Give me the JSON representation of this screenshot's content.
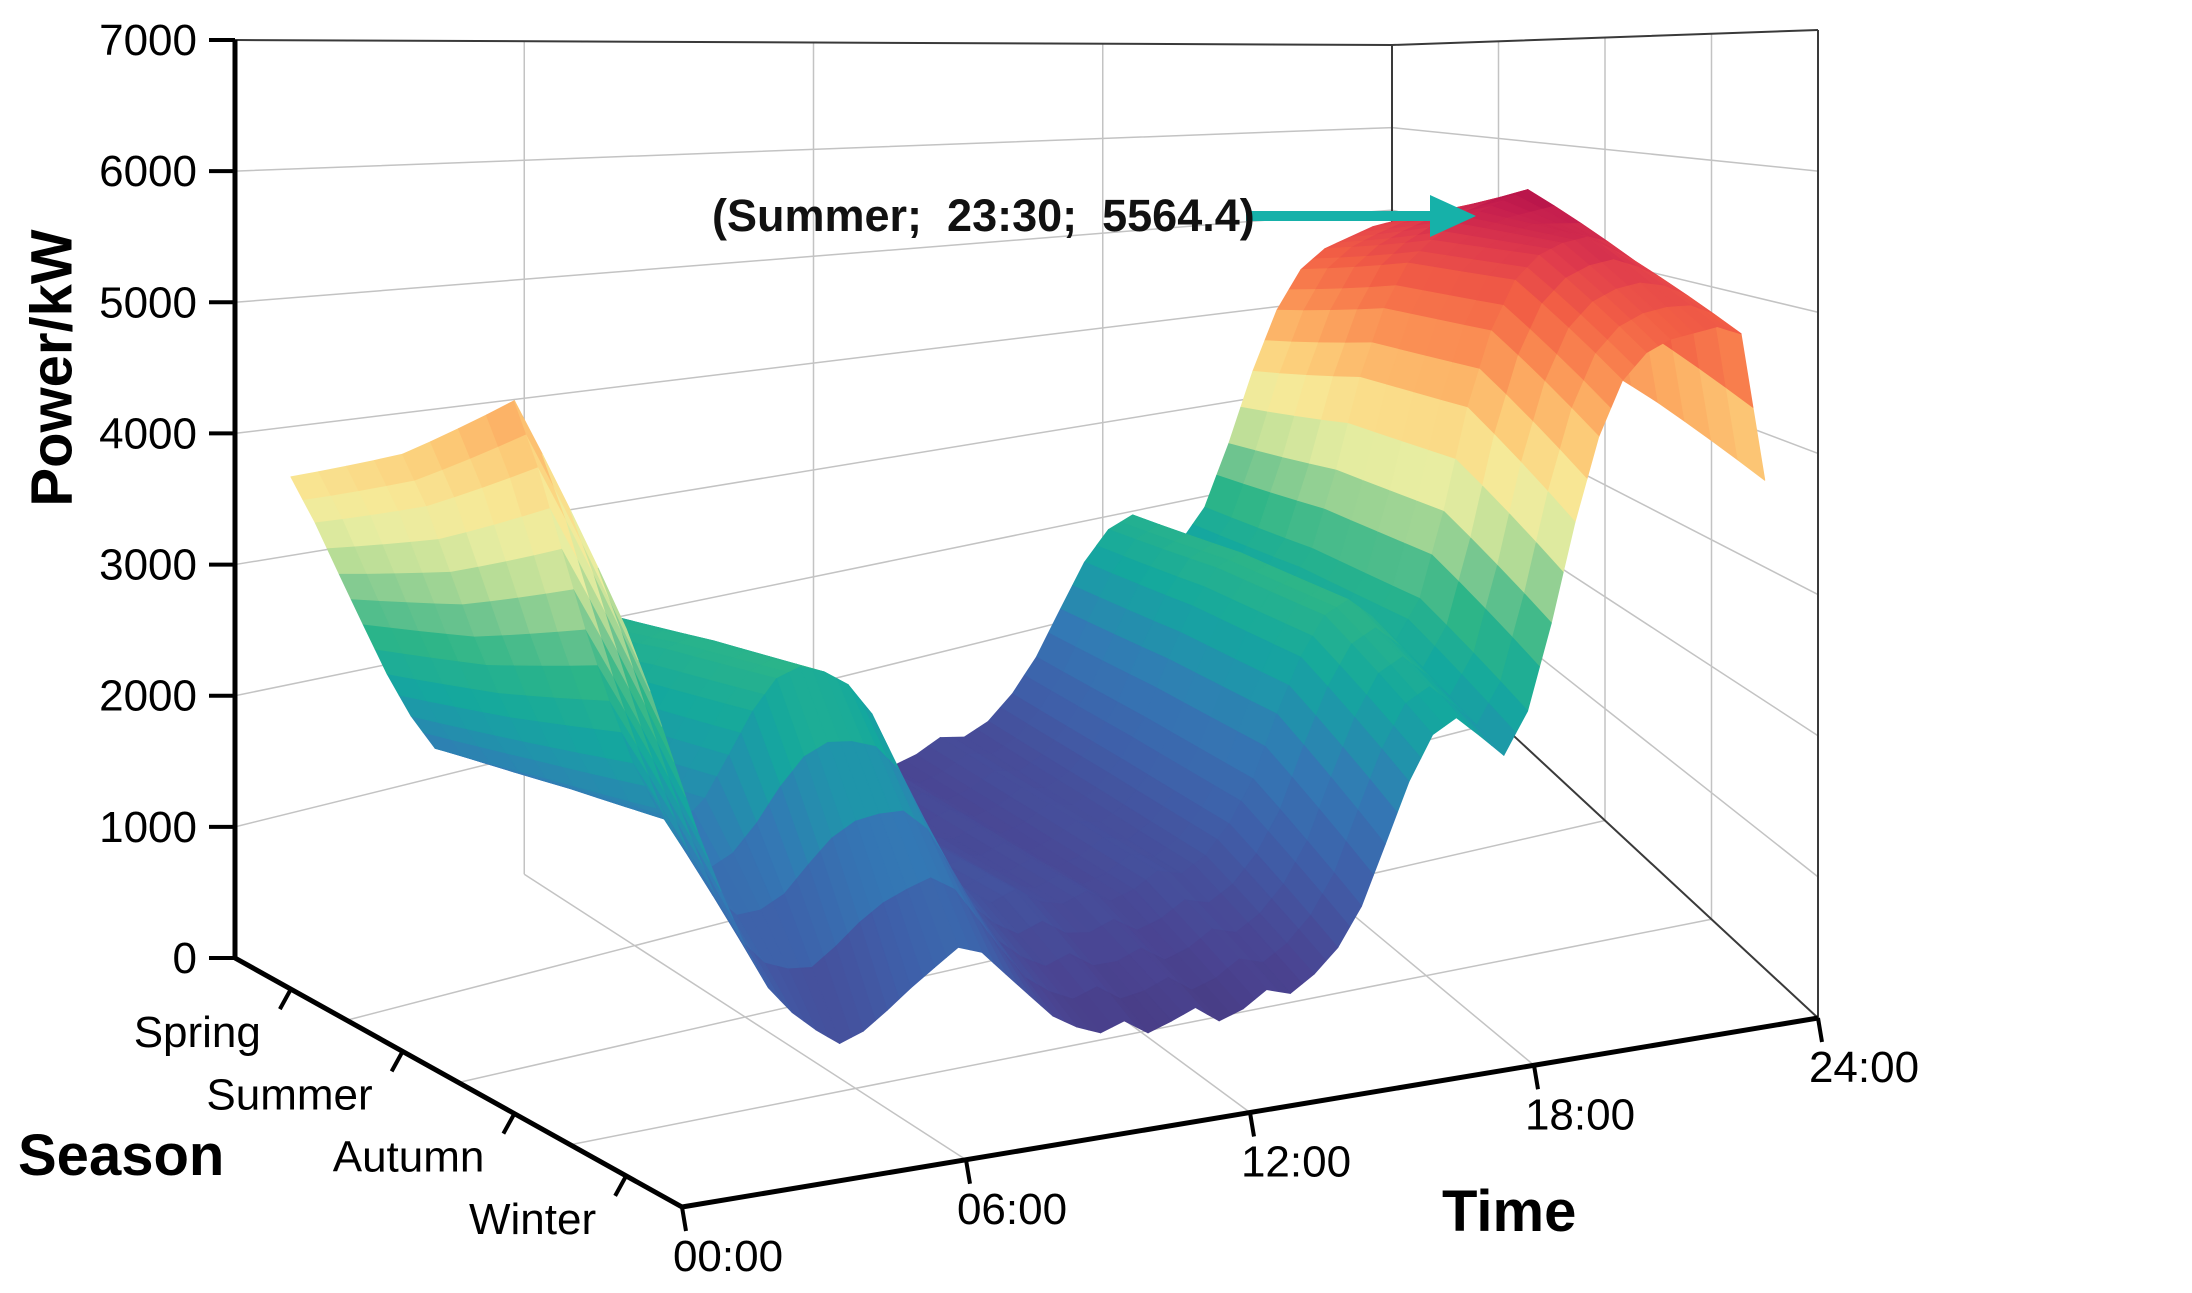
{
  "chart_data": {
    "type": "surface3d",
    "background": "#ffffff",
    "grid": true,
    "annotation": {
      "text": "(Summer;  23:30;  5564.4)",
      "season": "Summer",
      "time": "23:30",
      "value": 5564.4,
      "arrow_color": "#16b1a9"
    },
    "axes": {
      "z": {
        "label": "Power/kW",
        "min": 0,
        "max": 7000,
        "tick_step": 1000,
        "ticks": [
          "0",
          "1000",
          "2000",
          "3000",
          "4000",
          "5000",
          "6000",
          "7000"
        ]
      },
      "x": {
        "label": "Time",
        "ticks": [
          "00:00",
          "06:00",
          "12:00",
          "18:00",
          "24:00"
        ],
        "hours_start": 0,
        "hours_end": 24,
        "step_hours": 0.5
      },
      "y": {
        "label": "Season",
        "categories": [
          "Spring",
          "Summer",
          "Autumn",
          "Winter"
        ]
      }
    },
    "color_vmax": 5564.4,
    "colormap": [
      [
        0.0,
        "#45306e"
      ],
      [
        0.09,
        "#4a4492"
      ],
      [
        0.18,
        "#3f5fa9"
      ],
      [
        0.27,
        "#3379b5"
      ],
      [
        0.33,
        "#2094ab"
      ],
      [
        0.38,
        "#14a89e"
      ],
      [
        0.45,
        "#2db588"
      ],
      [
        0.5,
        "#6ec48f"
      ],
      [
        0.55,
        "#b5dc96"
      ],
      [
        0.6,
        "#e8eda1"
      ],
      [
        0.645,
        "#f8e896"
      ],
      [
        0.7,
        "#fccd79"
      ],
      [
        0.75,
        "#fcab62"
      ],
      [
        0.8,
        "#f9854f"
      ],
      [
        0.86,
        "#f25e45"
      ],
      [
        0.92,
        "#e03c4c"
      ],
      [
        0.97,
        "#c51e4e"
      ],
      [
        1.0,
        "#b11049"
      ]
    ],
    "series": [
      {
        "name": "Spring",
        "values": [
          3700,
          3350,
          2950,
          2550,
          2150,
          1800,
          1520,
          1430,
          1560,
          1820,
          2080,
          2280,
          2360,
          2310,
          2210,
          2010,
          1640,
          1240,
          930,
          760,
          660,
          710,
          600,
          560,
          620,
          510,
          560,
          660,
          610,
          700,
          900,
          1190,
          1590,
          1990,
          2260,
          2360,
          2210,
          2010,
          2310,
          2910,
          3610,
          4210,
          4610,
          4810,
          4910,
          5010,
          5060,
          5110,
          3900
        ]
      },
      {
        "name": "Summer",
        "values": [
          3900,
          3550,
          3100,
          2650,
          2250,
          1900,
          1620,
          1520,
          1660,
          1920,
          2180,
          2380,
          2440,
          2390,
          2290,
          2080,
          1700,
          1300,
          980,
          810,
          700,
          760,
          650,
          600,
          660,
          560,
          610,
          710,
          660,
          760,
          960,
          1260,
          1700,
          2110,
          2400,
          2500,
          2350,
          2150,
          2450,
          3110,
          3910,
          4510,
          4910,
          5110,
          5260,
          5360,
          5460,
          5564.4,
          4150
        ]
      },
      {
        "name": "Autumn",
        "values": [
          4250,
          3850,
          3350,
          2850,
          2400,
          2000,
          1700,
          1580,
          1720,
          1970,
          2230,
          2420,
          2480,
          2430,
          2330,
          2120,
          1740,
          1340,
          1020,
          850,
          740,
          800,
          690,
          640,
          700,
          600,
          650,
          750,
          700,
          800,
          1000,
          1300,
          1750,
          2150,
          2440,
          2540,
          2390,
          2190,
          2490,
          3150,
          3950,
          4550,
          4950,
          5150,
          5250,
          5300,
          5210,
          5110,
          3920
        ]
      },
      {
        "name": "Winter",
        "values": [
          3000,
          2650,
          2250,
          1850,
          1500,
          1180,
          920,
          760,
          640,
          540,
          590,
          690,
          800,
          900,
          1000,
          950,
          800,
          650,
          500,
          410,
          350,
          400,
          300,
          350,
          410,
          300,
          350,
          450,
          400,
          500,
          650,
          900,
          1290,
          1690,
          1990,
          2090,
          1950,
          1800,
          2090,
          2690,
          3390,
          3990,
          4390,
          4590,
          4690,
          4740,
          4790,
          4740,
          3650
        ]
      }
    ]
  }
}
